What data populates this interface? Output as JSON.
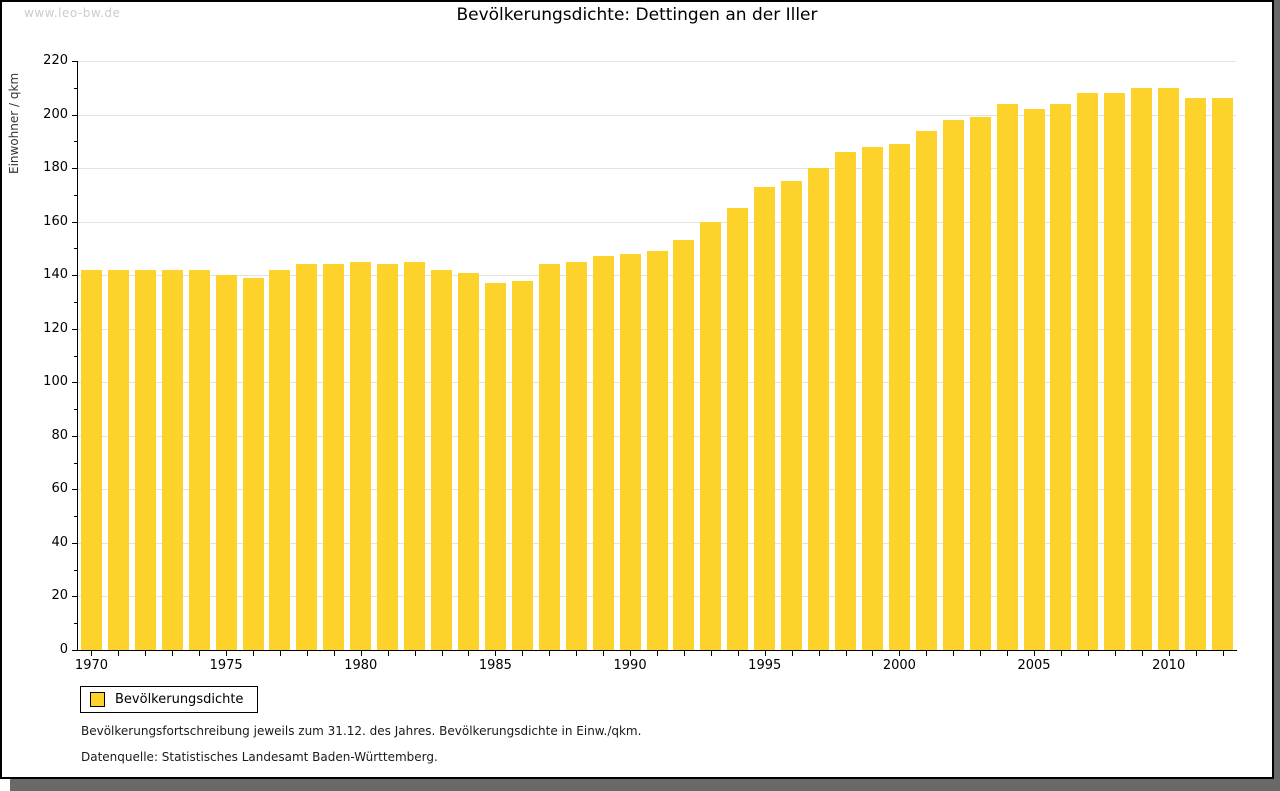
{
  "watermark": "www.leo-bw.de",
  "title": "Bevölkerungsdichte: Dettingen an der Iller",
  "chart_data": {
    "type": "bar",
    "title": "Bevölkerungsdichte: Dettingen an der Iller",
    "xlabel": "",
    "ylabel": "Einwohner / qkm",
    "categories": [
      1970,
      1971,
      1972,
      1973,
      1974,
      1975,
      1976,
      1977,
      1978,
      1979,
      1980,
      1981,
      1982,
      1983,
      1984,
      1985,
      1986,
      1987,
      1988,
      1989,
      1990,
      1991,
      1992,
      1993,
      1994,
      1995,
      1996,
      1997,
      1998,
      1999,
      2000,
      2001,
      2002,
      2003,
      2004,
      2005,
      2006,
      2007,
      2008,
      2009,
      2010,
      2011,
      2012
    ],
    "values": [
      142,
      142,
      142,
      142,
      142,
      140,
      139,
      142,
      144,
      144,
      145,
      144,
      145,
      142,
      141,
      137,
      138,
      144,
      145,
      147,
      148,
      149,
      153,
      160,
      165,
      173,
      175,
      180,
      186,
      188,
      189,
      194,
      198,
      199,
      204,
      202,
      204,
      208,
      208,
      210,
      210,
      206,
      206
    ],
    "ylim": [
      0,
      220
    ],
    "ytick_step": 20,
    "y_minor_tick_step": 10,
    "x_labeled_ticks": [
      1970,
      1975,
      1980,
      1985,
      1990,
      1995,
      2000,
      2005,
      2010
    ],
    "grid": true,
    "bar_color": "#FCD22B",
    "grid_color": "#E2E2E2",
    "axis_color": "#000000",
    "legend_position": "bottom-left"
  },
  "legend": {
    "label": "Bevölkerungsdichte"
  },
  "footnotes": {
    "line1": "Bevölkerungsfortschreibung jeweils zum 31.12. des Jahres. Bevölkerungsdichte in Einw./qkm.",
    "line2": "Datenquelle: Statistisches Landesamt Baden-Württemberg."
  }
}
